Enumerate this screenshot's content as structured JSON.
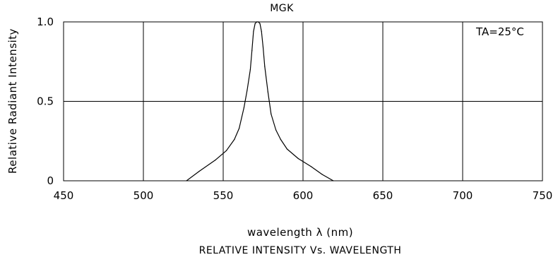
{
  "chart_data": {
    "type": "line",
    "title": "MGK",
    "xlabel": "wavelength λ (nm)",
    "ylabel": "Relative Radiant Intensity",
    "caption": "RELATIVE INTENSITY Vs. WAVELENGTH",
    "annotation": "TA=25°C",
    "xlim": [
      450,
      750
    ],
    "ylim": [
      0,
      1.0
    ],
    "xticks": [
      "450",
      "500",
      "550",
      "600",
      "650",
      "700",
      "750"
    ],
    "yticks": [
      "0",
      "0.5",
      "1.0"
    ],
    "grid": true,
    "series": [
      {
        "x": [
          527,
          535,
          545,
          552,
          557,
          560,
          563,
          565,
          567,
          568,
          569,
          570,
          571,
          572,
          573,
          574,
          575,
          576,
          578,
          580,
          583,
          586,
          590,
          597,
          605,
          612,
          619
        ],
        "y": [
          0.0,
          0.06,
          0.13,
          0.19,
          0.26,
          0.33,
          0.46,
          0.57,
          0.7,
          0.82,
          0.94,
          0.99,
          1.0,
          1.0,
          0.99,
          0.94,
          0.84,
          0.72,
          0.56,
          0.42,
          0.32,
          0.26,
          0.2,
          0.14,
          0.09,
          0.04,
          0.0
        ]
      }
    ]
  }
}
